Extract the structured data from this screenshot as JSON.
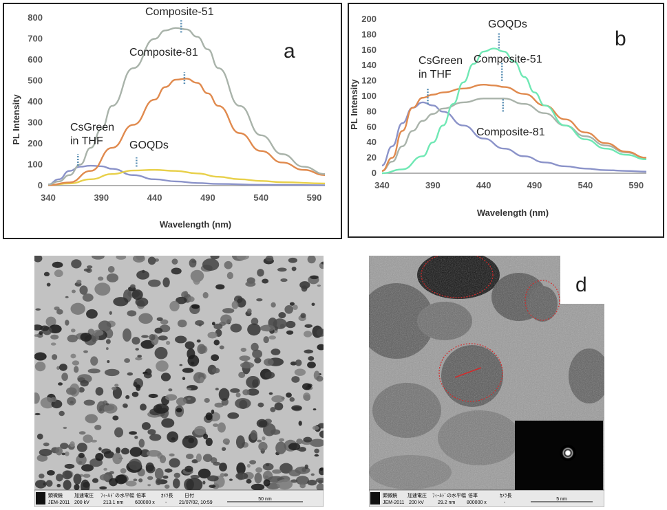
{
  "chart_data": [
    {
      "type": "line",
      "panel_letter": "a",
      "xlabel": "Wavelength (nm)",
      "ylabel": "PL Intensity",
      "xlim": [
        340,
        600
      ],
      "ylim": [
        0,
        800
      ],
      "xticks": [
        "340",
        "390",
        "440",
        "490",
        "540",
        "590"
      ],
      "yticks": [
        "0",
        "100",
        "200",
        "300",
        "400",
        "500",
        "600",
        "700",
        "800"
      ],
      "grid": false,
      "series": [
        {
          "color": "#8b93c9",
          "x": [
            340,
            350,
            360,
            370,
            380,
            390,
            400,
            420,
            440,
            460,
            480,
            500,
            540,
            600
          ],
          "y": [
            5,
            30,
            70,
            90,
            95,
            92,
            80,
            50,
            30,
            20,
            12,
            8,
            4,
            2
          ]
        },
        {
          "color": "#e8d04a",
          "x": [
            340,
            360,
            380,
            400,
            420,
            440,
            460,
            480,
            500,
            520,
            540,
            560,
            600
          ],
          "y": [
            2,
            10,
            30,
            55,
            72,
            75,
            70,
            58,
            42,
            30,
            22,
            16,
            10
          ]
        },
        {
          "color": "#e08a4e",
          "x": [
            340,
            360,
            380,
            400,
            420,
            440,
            450,
            460,
            470,
            480,
            490,
            500,
            520,
            540,
            560,
            580,
            600
          ],
          "y": [
            2,
            15,
            70,
            180,
            290,
            410,
            470,
            505,
            510,
            490,
            440,
            380,
            250,
            165,
            110,
            75,
            50
          ]
        },
        {
          "color": "#a9b3aa",
          "x": [
            340,
            350,
            360,
            370,
            380,
            390,
            400,
            420,
            440,
            450,
            460,
            470,
            480,
            490,
            500,
            520,
            540,
            560,
            580,
            600
          ],
          "y": [
            5,
            20,
            50,
            100,
            180,
            270,
            380,
            560,
            700,
            740,
            752,
            745,
            710,
            650,
            560,
            380,
            240,
            150,
            90,
            55
          ]
        }
      ],
      "annotations": [
        "Composite-51",
        "Composite-81",
        "CsGreen",
        "in THF",
        "GOQDs"
      ]
    },
    {
      "type": "line",
      "panel_letter": "b",
      "xlabel": "Wavelength (nm)",
      "ylabel": "PL Intensity",
      "xlim": [
        340,
        600
      ],
      "ylim": [
        0,
        200
      ],
      "xticks": [
        "340",
        "390",
        "440",
        "490",
        "540",
        "590"
      ],
      "yticks": [
        "0",
        "20",
        "40",
        "60",
        "80",
        "100",
        "120",
        "140",
        "160",
        "180",
        "200"
      ],
      "grid": false,
      "series": [
        {
          "color": "#8b93c9",
          "x": [
            340,
            350,
            360,
            370,
            380,
            390,
            400,
            420,
            440,
            460,
            480,
            500,
            520,
            540,
            560,
            580,
            600
          ],
          "y": [
            10,
            35,
            65,
            85,
            92,
            88,
            80,
            62,
            45,
            32,
            22,
            14,
            9,
            6,
            4,
            3,
            2
          ]
        },
        {
          "color": "#a9b3aa",
          "x": [
            340,
            350,
            360,
            370,
            380,
            390,
            400,
            420,
            440,
            460,
            480,
            500,
            520,
            540,
            560,
            580,
            600
          ],
          "y": [
            3,
            15,
            35,
            55,
            68,
            77,
            84,
            92,
            97,
            97,
            90,
            78,
            62,
            48,
            36,
            27,
            20
          ]
        },
        {
          "color": "#e08a4e",
          "x": [
            340,
            350,
            360,
            370,
            380,
            390,
            400,
            420,
            440,
            450,
            460,
            480,
            500,
            520,
            540,
            560,
            580,
            600
          ],
          "y": [
            3,
            20,
            55,
            85,
            98,
            102,
            105,
            110,
            115,
            114,
            112,
            103,
            88,
            70,
            53,
            39,
            28,
            20
          ]
        },
        {
          "color": "#6fe8b4",
          "x": [
            340,
            360,
            380,
            390,
            400,
            410,
            420,
            430,
            440,
            450,
            460,
            470,
            480,
            490,
            500,
            520,
            540,
            560,
            580,
            600
          ],
          "y": [
            0,
            5,
            22,
            40,
            62,
            90,
            118,
            142,
            158,
            162,
            158,
            145,
            125,
            105,
            88,
            62,
            44,
            32,
            24,
            18
          ]
        }
      ],
      "annotations": [
        "GOQDs",
        "Composite-51",
        "CsGreen",
        "in THF",
        "Composite-81"
      ]
    }
  ],
  "tem_c": {
    "footer": [
      "顕微鏡",
      "加速電圧",
      "ﾌｨｰﾙﾄﾞの水平幅",
      "倍率",
      "ｶﾒﾗ長",
      "日付",
      "JEM-2011",
      "200 kV",
      "213.1 nm",
      "600000 x",
      "-",
      "21/07/02, 10:59",
      "50 nm"
    ]
  },
  "tem_d": {
    "panel_letter": "d",
    "footer": [
      "顕微鏡",
      "加速電圧",
      "ﾌｨｰﾙﾄﾞの水平幅",
      "倍率",
      "ｶﾒﾗ長",
      "JEM-2011",
      "200 kV",
      "29.2 nm",
      "800000 x",
      "-",
      "5 nm"
    ]
  }
}
